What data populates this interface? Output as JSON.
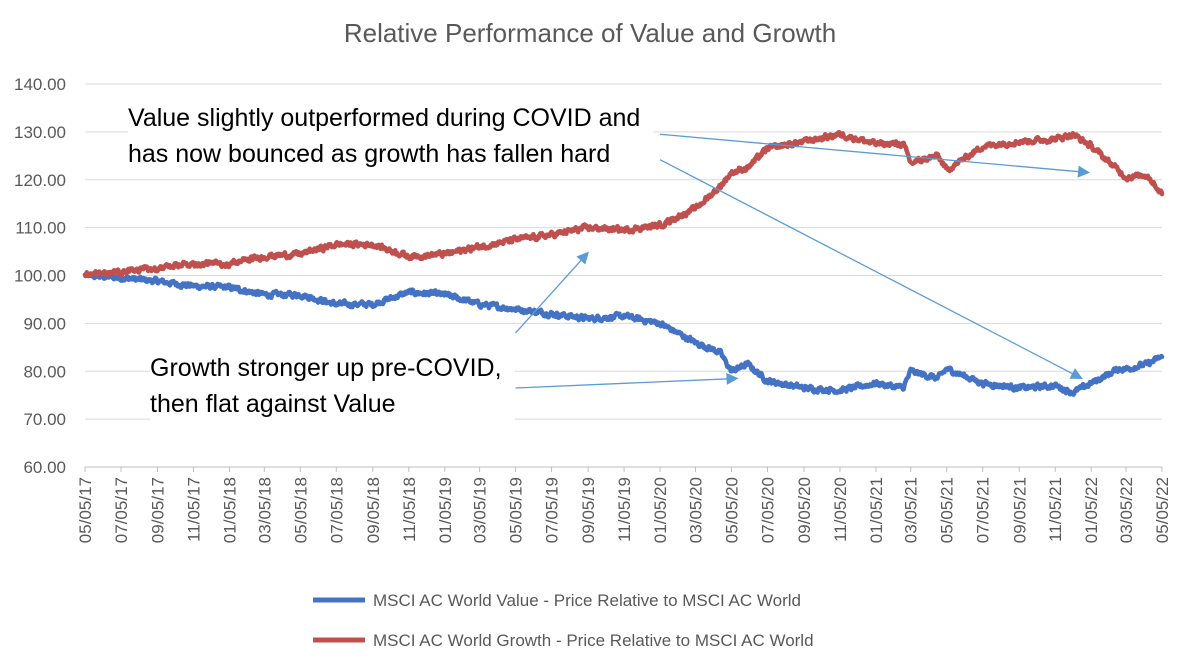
{
  "chart_data": {
    "type": "line",
    "title": "Relative Performance of Value and Growth",
    "xlabel": "",
    "ylabel": "",
    "ylim": [
      60,
      140
    ],
    "y_ticks": [
      "60.00",
      "70.00",
      "80.00",
      "90.00",
      "100.00",
      "110.00",
      "120.00",
      "130.00",
      "140.00"
    ],
    "x_ticks": [
      "05/05/17",
      "07/05/17",
      "09/05/17",
      "11/05/17",
      "01/05/18",
      "03/05/18",
      "05/05/18",
      "07/05/18",
      "09/05/18",
      "11/05/18",
      "01/05/19",
      "03/05/19",
      "05/05/19",
      "07/05/19",
      "09/05/19",
      "11/05/19",
      "01/05/20",
      "03/05/20",
      "05/05/20",
      "07/05/20",
      "09/05/20",
      "11/05/20",
      "01/05/21",
      "03/05/21",
      "05/05/21",
      "07/05/21",
      "09/05/21",
      "11/05/21",
      "01/05/22",
      "03/05/22",
      "05/05/22"
    ],
    "x_axis": "date",
    "grid": "horizontal",
    "legend_position": "bottom",
    "series": [
      {
        "name": "MSCI AC World Value - Price Relative to MSCI AC World",
        "color": "#4472C4",
        "x": [
          "2017-05-05",
          "2017-07-05",
          "2017-09-05",
          "2017-11-05",
          "2018-01-05",
          "2018-03-05",
          "2018-05-05",
          "2018-07-05",
          "2018-09-05",
          "2018-11-05",
          "2019-01-05",
          "2019-03-05",
          "2019-05-05",
          "2019-07-05",
          "2019-09-05",
          "2019-11-05",
          "2020-01-05",
          "2020-03-05",
          "2020-04-15",
          "2020-05-05",
          "2020-06-01",
          "2020-07-05",
          "2020-09-05",
          "2020-11-05",
          "2021-01-05",
          "2021-02-20",
          "2021-03-05",
          "2021-04-20",
          "2021-05-05",
          "2021-07-05",
          "2021-09-05",
          "2021-11-05",
          "2021-12-05",
          "2022-01-05",
          "2022-02-20",
          "2022-03-05",
          "2022-04-10",
          "2022-05-05"
        ],
        "values": [
          100.0,
          99.5,
          98.8,
          97.8,
          97.5,
          96.0,
          96.0,
          94.0,
          94.0,
          96.5,
          96.0,
          94.0,
          93.0,
          92.0,
          91.0,
          91.5,
          90.0,
          86.0,
          84.0,
          80.0,
          81.5,
          78.0,
          76.5,
          76.0,
          77.5,
          76.5,
          80.0,
          78.5,
          80.5,
          77.5,
          76.5,
          77.0,
          75.5,
          77.5,
          80.5,
          80.5,
          81.5,
          83.0
        ]
      },
      {
        "name": "MSCI AC World Growth - Price Relative to MSCI AC World",
        "color": "#C0504D",
        "x": [
          "2017-05-05",
          "2017-07-05",
          "2017-09-05",
          "2017-11-05",
          "2018-01-05",
          "2018-03-05",
          "2018-05-05",
          "2018-07-05",
          "2018-09-05",
          "2018-11-05",
          "2019-01-05",
          "2019-03-05",
          "2019-05-05",
          "2019-07-05",
          "2019-09-05",
          "2019-11-05",
          "2020-01-05",
          "2020-03-05",
          "2020-04-15",
          "2020-05-05",
          "2020-06-01",
          "2020-07-05",
          "2020-09-05",
          "2020-11-05",
          "2021-01-05",
          "2021-02-20",
          "2021-03-05",
          "2021-04-20",
          "2021-05-05",
          "2021-07-05",
          "2021-09-05",
          "2021-11-05",
          "2021-12-05",
          "2022-01-05",
          "2022-02-20",
          "2022-03-05",
          "2022-04-10",
          "2022-05-05"
        ],
        "values": [
          100.3,
          100.8,
          101.5,
          102.5,
          102.5,
          104.0,
          104.5,
          106.5,
          106.5,
          104.0,
          104.5,
          106.0,
          107.5,
          108.5,
          110.0,
          109.5,
          110.5,
          114.0,
          118.5,
          121.5,
          122.5,
          126.5,
          128.0,
          129.5,
          127.5,
          127.5,
          123.5,
          125.0,
          122.0,
          127.0,
          128.0,
          128.5,
          129.5,
          127.0,
          122.0,
          120.5,
          121.0,
          117.0
        ]
      }
    ],
    "annotations": [
      {
        "text": "Growth stronger up pre-COVID, then flat against Value",
        "arrows": [
          {
            "from": {
              "x": "2019-05-05",
              "y": 88.0
            },
            "to": {
              "x": "2019-09-05",
              "y": 104.8
            }
          },
          {
            "from": {
              "x": "2019-05-05",
              "y": 76.5
            },
            "to": {
              "x": "2020-05-15",
              "y": 78.5
            }
          }
        ]
      },
      {
        "text": "Value slightly outperformed during COVID and has now bounced as growth has fallen hard",
        "arrows": [
          {
            "from": {
              "x": "2020-01-05",
              "y": 129.5
            },
            "to": {
              "x": "2022-01-01",
              "y": 121.5
            }
          },
          {
            "from": {
              "x": "2020-01-05",
              "y": 124.2
            },
            "to": {
              "x": "2021-12-20",
              "y": 78.5
            }
          }
        ]
      }
    ]
  }
}
